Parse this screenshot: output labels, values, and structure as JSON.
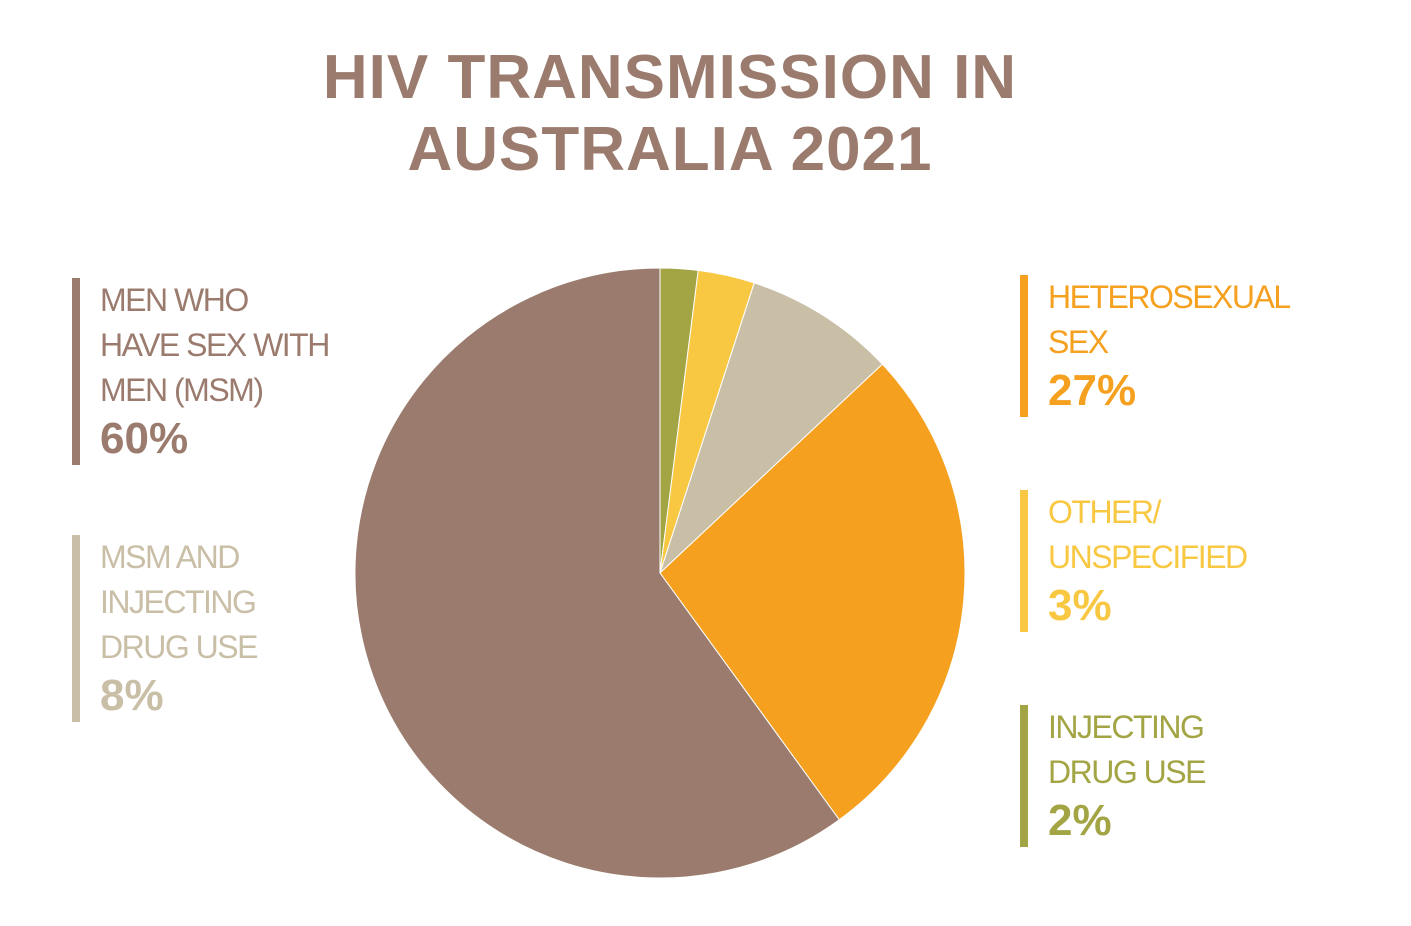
{
  "chart_data": {
    "type": "pie",
    "title": "HIV TRANSMISSION IN\nAUSTRALIA 2021",
    "categories": [
      "INJECTING\nDRUG USE",
      "OTHER/\nUNSPECIFIED",
      "MSM AND\nINJECTING\nDRUG USE",
      "HETEROSEXUAL\nSEX",
      "MEN WHO\nHAVE SEX WITH\nMEN (MSM)"
    ],
    "values": [
      2,
      3,
      8,
      27,
      60
    ],
    "value_labels": [
      "2%",
      "3%",
      "8%",
      "27%",
      "60%"
    ],
    "colors": [
      "#a3a545",
      "#f9c843",
      "#c9bea6",
      "#f5a01f",
      "#9a7b6d"
    ],
    "title_color": "#9a7b6d"
  }
}
